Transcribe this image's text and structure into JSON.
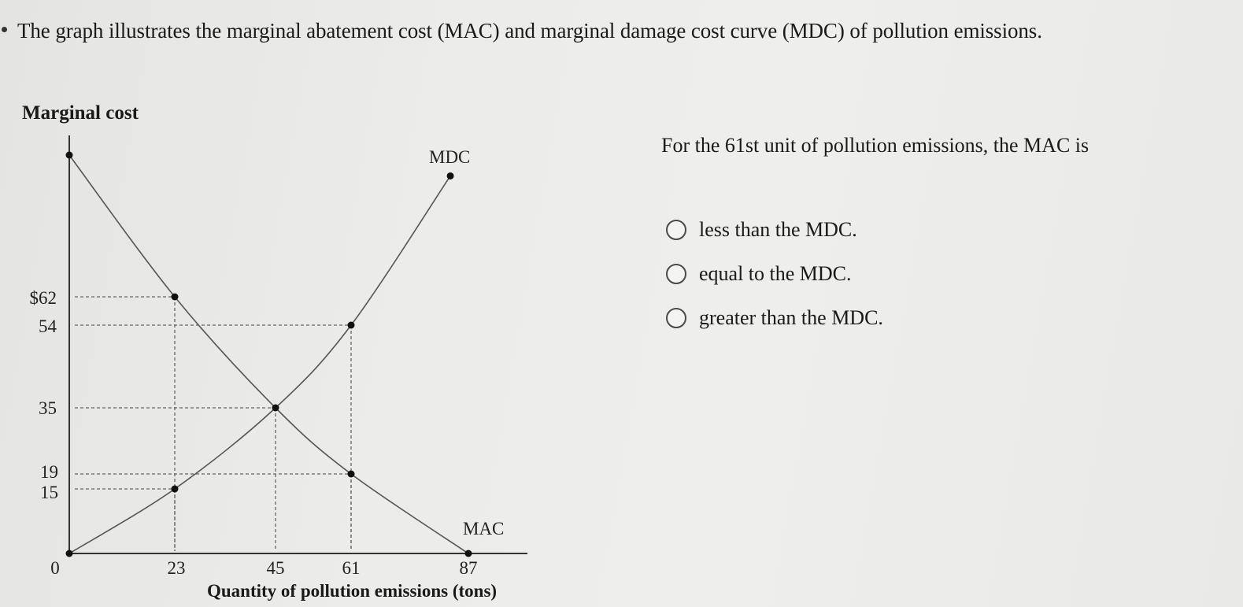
{
  "question": {
    "text": "The graph illustrates the marginal abatement cost (MAC) and marginal damage cost curve (MDC) of pollution emissions.",
    "prompt": "For the 61st unit of pollution emissions, the MAC is",
    "options": [
      {
        "label": "less than the MDC."
      },
      {
        "label": "equal to the MDC."
      },
      {
        "label": "greater than the MDC."
      }
    ]
  },
  "chart_data": {
    "type": "line",
    "ylabel": "Marginal cost",
    "xlabel": "Quantity of pollution emissions (tons)",
    "x_ticks": [
      "0",
      "23",
      "45",
      "61",
      "87"
    ],
    "y_ticks": [
      "$62",
      "54",
      "35",
      "19",
      "15"
    ],
    "series": [
      {
        "name": "MDC",
        "points": [
          [
            0,
            0
          ],
          [
            23,
            15
          ],
          [
            45,
            35
          ],
          [
            61,
            54
          ],
          [
            83,
            91
          ]
        ]
      },
      {
        "name": "MAC",
        "points": [
          [
            0,
            96
          ],
          [
            23,
            62
          ],
          [
            45,
            35
          ],
          [
            61,
            19
          ],
          [
            87,
            0
          ]
        ]
      }
    ],
    "reference_points": [
      [
        23,
        62
      ],
      [
        61,
        54
      ],
      [
        45,
        35
      ],
      [
        61,
        19
      ],
      [
        23,
        15
      ]
    ],
    "grid": false,
    "colors": {
      "curve": "#555555",
      "guide": "#666666"
    }
  }
}
